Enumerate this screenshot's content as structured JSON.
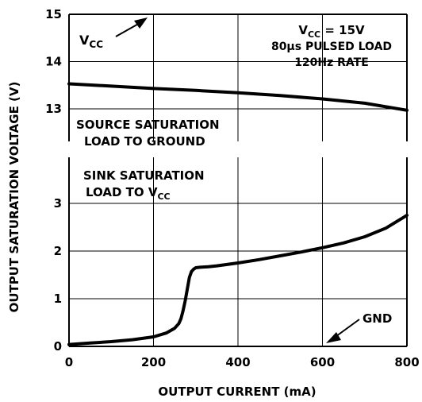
{
  "chart_data": {
    "type": "line",
    "ylabel": "OUTPUT SATURATION VOLTAGE (V)",
    "xlabel": "OUTPUT CURRENT (mA)",
    "xlim": [
      0,
      800
    ],
    "x_ticks": [
      "0",
      "200",
      "400",
      "600",
      "800"
    ],
    "grid": true,
    "panels": [
      {
        "name": "upper",
        "ylim": [
          13,
          15
        ],
        "y_ticks": [
          "13",
          "14",
          "15"
        ],
        "series": [
          {
            "x": [
              0,
              100,
              200,
              300,
              400,
              500,
              600,
              700,
              800
            ],
            "values": [
              13.53,
              13.48,
              13.43,
              13.39,
              13.34,
              13.28,
              13.21,
              13.12,
              12.97
            ]
          }
        ],
        "annotations": {
          "vcc_arrow_label": "V",
          "vcc_arrow_sub": "CC",
          "conditions_line1_main": "V",
          "conditions_line1_sub": "CC",
          "conditions_line1_rest": " = 15V",
          "conditions_line2": "80µs PULSED LOAD",
          "conditions_line3": "120Hz RATE",
          "source_line1": "SOURCE SATURATION",
          "source_line2": "LOAD TO GROUND"
        }
      },
      {
        "name": "lower",
        "ylim": [
          0,
          3.5
        ],
        "y_ticks": [
          "0",
          "1",
          "2",
          "3"
        ],
        "series": [
          {
            "x": [
              0,
              50,
              100,
              150,
              200,
              230,
              250,
              260,
              265,
              270,
              275,
              280,
              285,
              290,
              295,
              300,
              310,
              330,
              350,
              400,
              450,
              500,
              550,
              600,
              650,
              700,
              750,
              800
            ],
            "values": [
              0.04,
              0.07,
              0.1,
              0.14,
              0.2,
              0.28,
              0.38,
              0.48,
              0.58,
              0.75,
              0.95,
              1.2,
              1.45,
              1.57,
              1.62,
              1.65,
              1.66,
              1.67,
              1.69,
              1.75,
              1.82,
              1.9,
              1.98,
              2.07,
              2.17,
              2.3,
              2.48,
              2.75
            ]
          }
        ],
        "annotations": {
          "sink_line1": "SINK SATURATION",
          "sink_line2_main": "LOAD TO V",
          "sink_line2_sub": "CC",
          "gnd_label": "GND"
        }
      }
    ]
  }
}
